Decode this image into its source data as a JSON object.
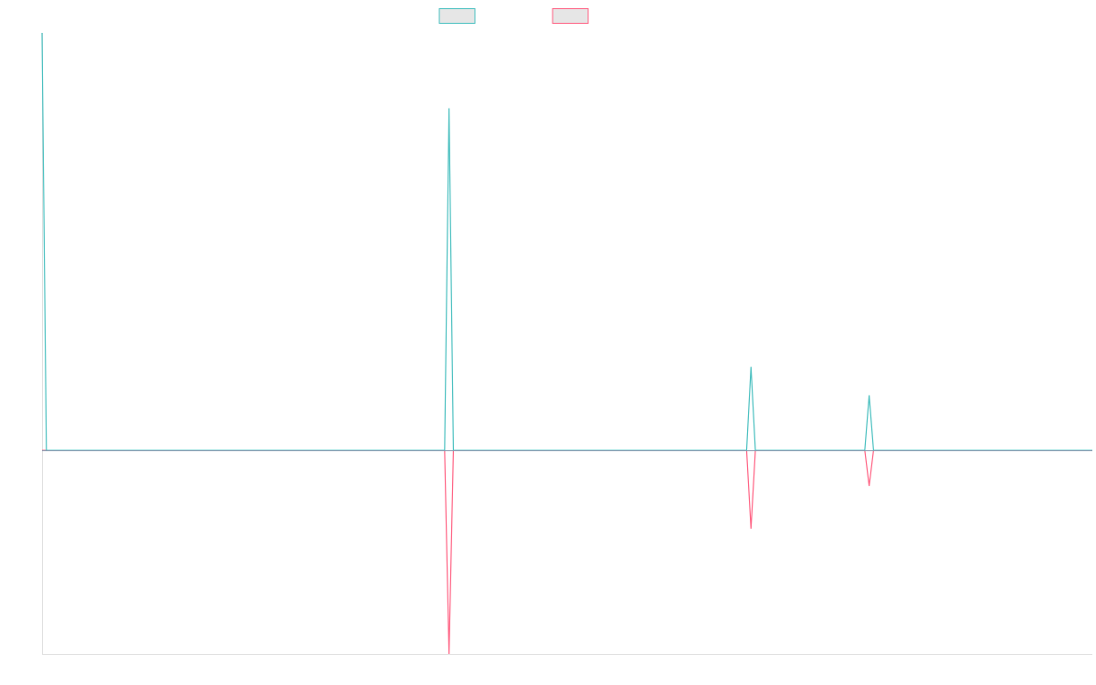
{
  "colors": {
    "teal": "#4bc0c0",
    "pink": "#ff6384",
    "legend_fill": "#e6e6e6",
    "axis": "#e0e0e0",
    "zero_line": "#8a9bb0"
  },
  "chart_data": {
    "type": "line",
    "grid": false,
    "legend_placement": "top-center",
    "x": [
      0,
      1,
      2,
      3,
      4,
      5,
      6,
      7,
      8,
      9,
      10,
      11,
      12,
      13,
      14,
      15,
      16,
      17,
      18,
      19,
      20,
      21,
      22,
      23,
      24,
      25,
      26,
      27,
      28,
      29,
      30,
      31,
      32,
      33,
      34,
      35,
      36,
      37,
      38,
      39,
      40,
      41,
      42,
      43,
      44,
      45,
      46,
      47,
      48,
      49,
      50,
      51,
      52,
      53,
      54,
      55,
      56,
      57,
      58,
      59,
      60,
      61,
      62,
      63,
      64,
      65,
      66,
      67,
      68,
      69,
      70,
      71,
      72,
      73,
      74,
      75,
      76,
      77,
      78,
      79,
      80,
      81,
      82,
      83,
      84,
      85,
      86,
      87,
      88,
      89,
      90,
      91,
      92,
      93,
      94,
      95,
      96,
      97,
      98,
      99,
      100,
      101,
      102,
      103,
      104,
      105,
      106,
      107,
      108,
      109,
      110,
      111,
      112,
      113,
      114,
      115,
      116,
      117,
      118,
      119,
      120,
      121,
      122,
      123,
      124,
      125,
      126,
      127,
      128,
      129,
      130,
      131,
      132,
      133,
      134,
      135,
      136,
      137,
      138,
      139,
      140,
      141,
      142,
      143,
      144,
      145,
      146,
      147,
      148,
      149,
      150,
      151,
      152,
      153,
      154,
      155,
      156,
      157,
      158,
      159,
      160,
      161,
      162,
      163,
      164,
      165,
      166,
      167,
      168,
      169,
      170,
      171,
      172,
      173,
      174,
      175,
      176,
      177,
      178,
      179,
      180,
      181,
      182,
      183,
      184,
      185,
      186,
      187,
      188,
      189,
      190,
      191,
      192,
      193,
      194,
      195,
      196,
      197,
      198,
      199,
      200,
      201,
      202,
      203,
      204,
      205,
      206,
      207,
      208,
      209,
      210,
      211,
      212,
      213,
      214,
      215,
      216,
      217,
      218,
      219,
      220,
      221,
      222,
      223,
      224,
      225,
      226,
      227,
      228,
      229,
      230,
      231,
      232,
      233,
      234,
      235,
      236,
      237,
      238,
      239,
      240
    ],
    "ylim": [
      -1,
      2.05
    ],
    "series": [
      {
        "color": "#4bc0c0",
        "points": [
          [
            0,
            2.05
          ],
          [
            1,
            0
          ],
          [
            92,
            0
          ],
          [
            93,
            1.68
          ],
          [
            94,
            0
          ],
          [
            161,
            0
          ],
          [
            162,
            0.41
          ],
          [
            163,
            0
          ],
          [
            188,
            0
          ],
          [
            189,
            0.27
          ],
          [
            190,
            0
          ],
          [
            240,
            0
          ]
        ]
      },
      {
        "color": "#ff6384",
        "points": [
          [
            0,
            0
          ],
          [
            92,
            0
          ],
          [
            93,
            -1.0
          ],
          [
            94,
            0
          ],
          [
            161,
            0
          ],
          [
            162,
            -0.385
          ],
          [
            163,
            0
          ],
          [
            188,
            0
          ],
          [
            189,
            -0.175
          ],
          [
            190,
            0
          ],
          [
            240,
            0
          ]
        ]
      }
    ]
  }
}
